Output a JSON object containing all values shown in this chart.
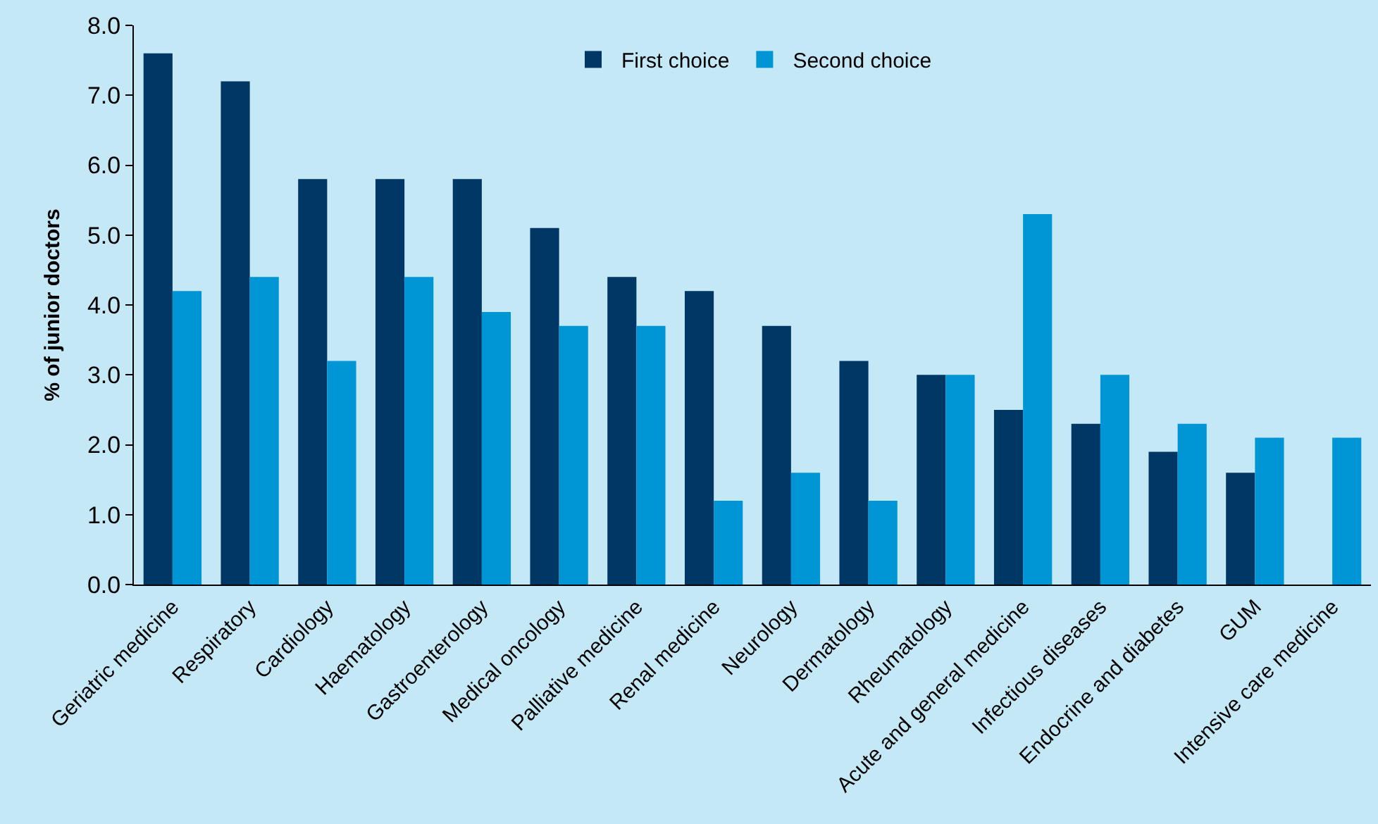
{
  "chart_data": {
    "type": "bar",
    "ylabel": "% of junior doctors",
    "categories": [
      "Geriatric medicine",
      "Respiratory",
      "Cardiology",
      "Haematology",
      "Gastroenterology",
      "Medical oncology",
      "Palliative medicine",
      "Renal medicine",
      "Neurology",
      "Dermatology",
      "Rheumatology",
      "Acute and general medicine",
      "Infectious diseases",
      "Endocrine and diabetes",
      "GUM",
      "Intensive care medicine"
    ],
    "series": [
      {
        "name": "First choice",
        "color": "#003764",
        "values": [
          7.6,
          7.2,
          5.8,
          5.8,
          5.8,
          5.1,
          4.4,
          4.2,
          3.7,
          3.2,
          3.0,
          2.5,
          2.3,
          1.9,
          1.6,
          null
        ]
      },
      {
        "name": "Second choice",
        "color": "#0096d6",
        "values": [
          4.2,
          4.4,
          3.2,
          4.4,
          3.9,
          3.7,
          3.7,
          1.2,
          1.6,
          1.2,
          3.0,
          5.3,
          3.0,
          2.3,
          2.1,
          2.1
        ]
      }
    ],
    "ylim": [
      0,
      8
    ],
    "yticks": [
      {
        "value": 0,
        "label": "0.0"
      },
      {
        "value": 1,
        "label": "1.0"
      },
      {
        "value": 2,
        "label": "2.0"
      },
      {
        "value": 3,
        "label": "3.0"
      },
      {
        "value": 4,
        "label": "4.0"
      },
      {
        "value": 5,
        "label": "5.0"
      },
      {
        "value": 6,
        "label": "6.0"
      },
      {
        "value": 7,
        "label": "7.0"
      },
      {
        "value": 8,
        "label": "8.0"
      }
    ],
    "grid": false,
    "legend": "top"
  }
}
